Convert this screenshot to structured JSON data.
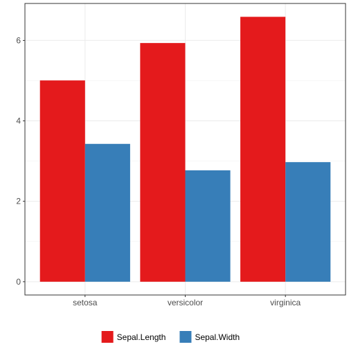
{
  "chart_data": {
    "type": "bar",
    "categories": [
      "setosa",
      "versicolor",
      "virginica"
    ],
    "series": [
      {
        "name": "Sepal.Length",
        "values": [
          5.006,
          5.936,
          6.588
        ],
        "color": "#E41A1C"
      },
      {
        "name": "Sepal.Width",
        "values": [
          3.428,
          2.77,
          2.974
        ],
        "color": "#377EB8"
      }
    ],
    "title": "",
    "xlabel": "",
    "ylabel": "",
    "ylim": [
      -0.33,
      6.92
    ],
    "yticks": [
      0,
      2,
      4,
      6
    ],
    "grid": true,
    "legend_position": "bottom"
  }
}
